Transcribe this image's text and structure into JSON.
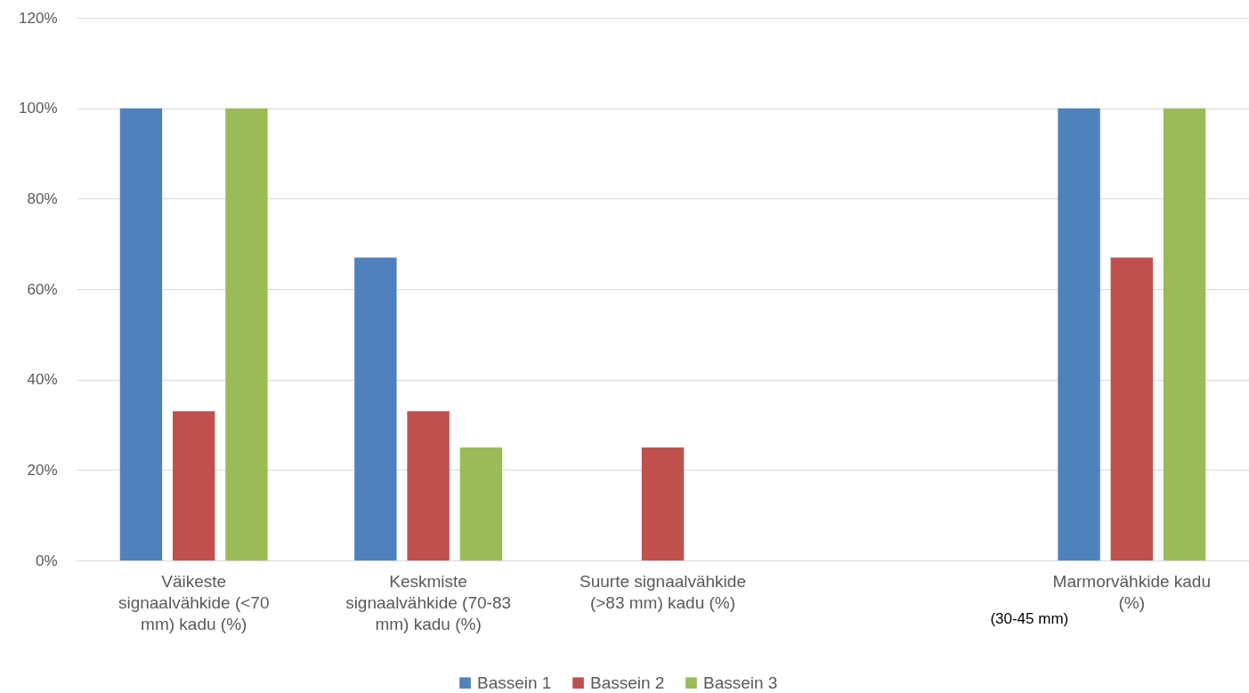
{
  "chart_data": {
    "type": "bar",
    "categories": [
      "Väikeste signaalvähkide (<70 mm) kadu (%)",
      "Keskmiste signaalvähkide (70-83 mm) kadu (%)",
      "Suurte signaalvähkide (>83 mm) kadu (%)",
      null,
      "Marmorvähkide kadu (%)"
    ],
    "series": [
      {
        "name": "Bassein 1",
        "color": "#4f81bd",
        "values": [
          100,
          67,
          null,
          null,
          100
        ]
      },
      {
        "name": "Bassein 2",
        "color": "#c0504d",
        "values": [
          33,
          33,
          25,
          null,
          67
        ]
      },
      {
        "name": "Bassein 3",
        "color": "#9bbb59",
        "values": [
          100,
          25,
          null,
          null,
          100
        ]
      }
    ],
    "ylim": [
      0,
      120
    ],
    "yticks": [
      {
        "value": 0,
        "label": "0%"
      },
      {
        "value": 20,
        "label": "20%"
      },
      {
        "value": 40,
        "label": "40%"
      },
      {
        "value": 60,
        "label": "60%"
      },
      {
        "value": 80,
        "label": "80%"
      },
      {
        "value": 100,
        "label": "100%"
      },
      {
        "value": 120,
        "label": "120%"
      }
    ],
    "annotations": [
      "(30-45 mm)"
    ],
    "grid": "y",
    "legend": "bottom"
  }
}
